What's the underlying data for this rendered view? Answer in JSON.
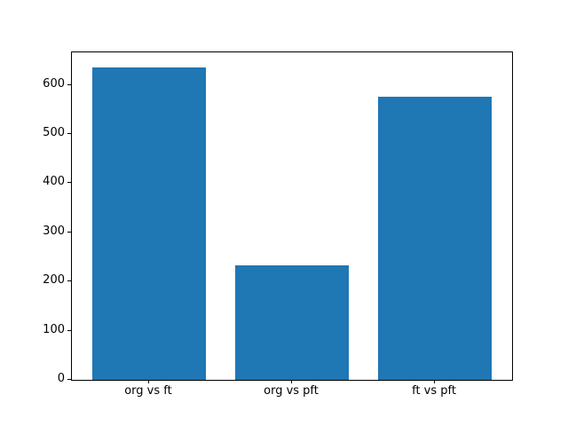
{
  "chart_data": {
    "type": "bar",
    "title": "",
    "xlabel": "",
    "ylabel": "",
    "categories": [
      "org vs ft",
      "org vs pft",
      "ft vs pft"
    ],
    "values": [
      635,
      232,
      575
    ],
    "yticks": [
      0,
      100,
      200,
      300,
      400,
      500,
      600
    ],
    "ylim": [
      0,
      666
    ],
    "bar_color": "#1f77b4",
    "axis_color": "#000000",
    "background_color": "#ffffff",
    "grid": false,
    "legend": null,
    "bar_width_fraction": 0.8
  }
}
